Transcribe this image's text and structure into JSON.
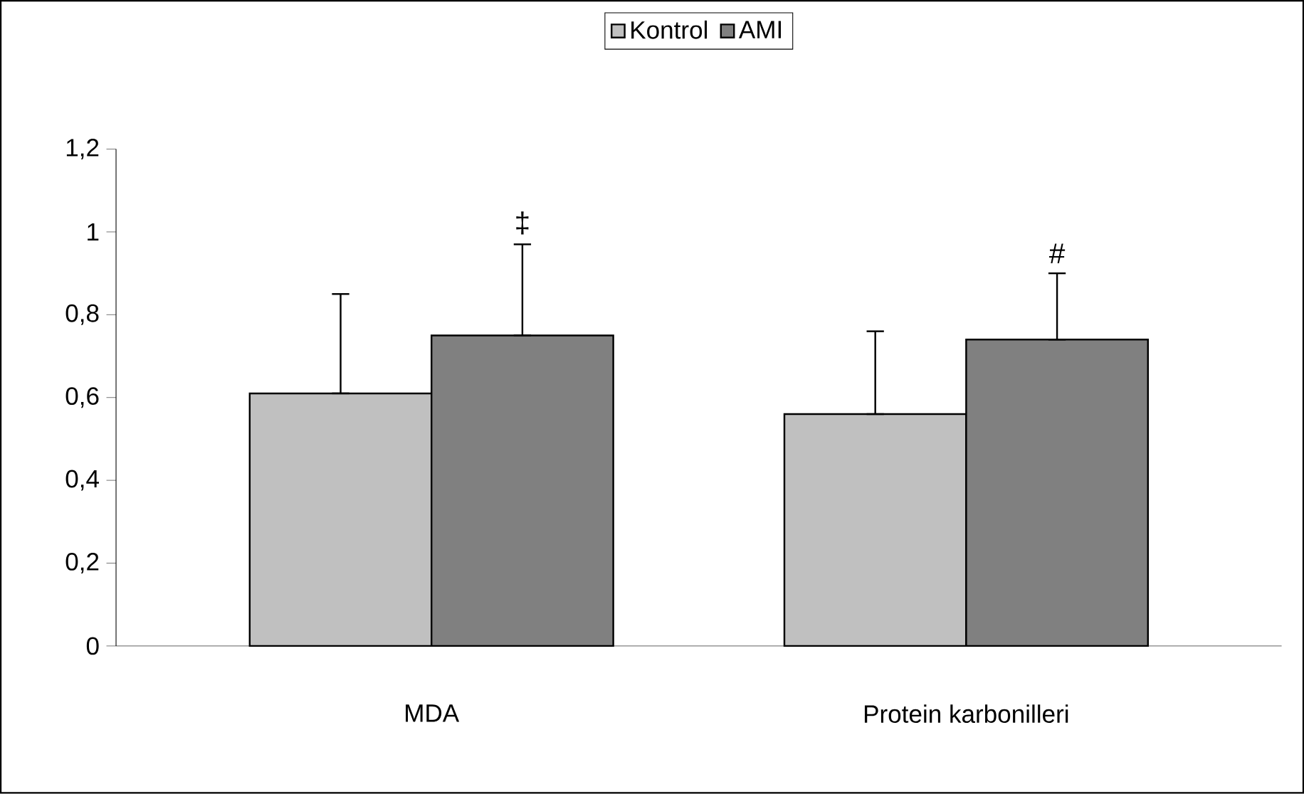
{
  "chart_data": {
    "type": "bar",
    "categories": [
      "MDA",
      "Protein karbonilleri"
    ],
    "series": [
      {
        "name": "Kontrol",
        "color": "#c0c0c0",
        "values": [
          0.61,
          0.56
        ],
        "errors": [
          [
            0.61,
            0.85
          ],
          [
            0.56,
            0.76
          ]
        ]
      },
      {
        "name": "AMI",
        "color": "#808080",
        "values": [
          0.75,
          0.74
        ],
        "errors": [
          [
            0.75,
            0.97
          ],
          [
            0.74,
            0.9
          ]
        ]
      }
    ],
    "ylim": [
      0,
      1.2
    ],
    "yticks": [
      0,
      {
        "value": 0.2,
        "label": "0,2"
      },
      {
        "value": 0.4,
        "label": "0,4"
      },
      {
        "value": 0.6,
        "label": "0,6"
      },
      {
        "value": 0.8,
        "label": "0,8"
      },
      1,
      {
        "value": 1.2,
        "label": "1,2"
      }
    ],
    "legend": "top",
    "annotations": [
      "‡",
      "#"
    ]
  }
}
